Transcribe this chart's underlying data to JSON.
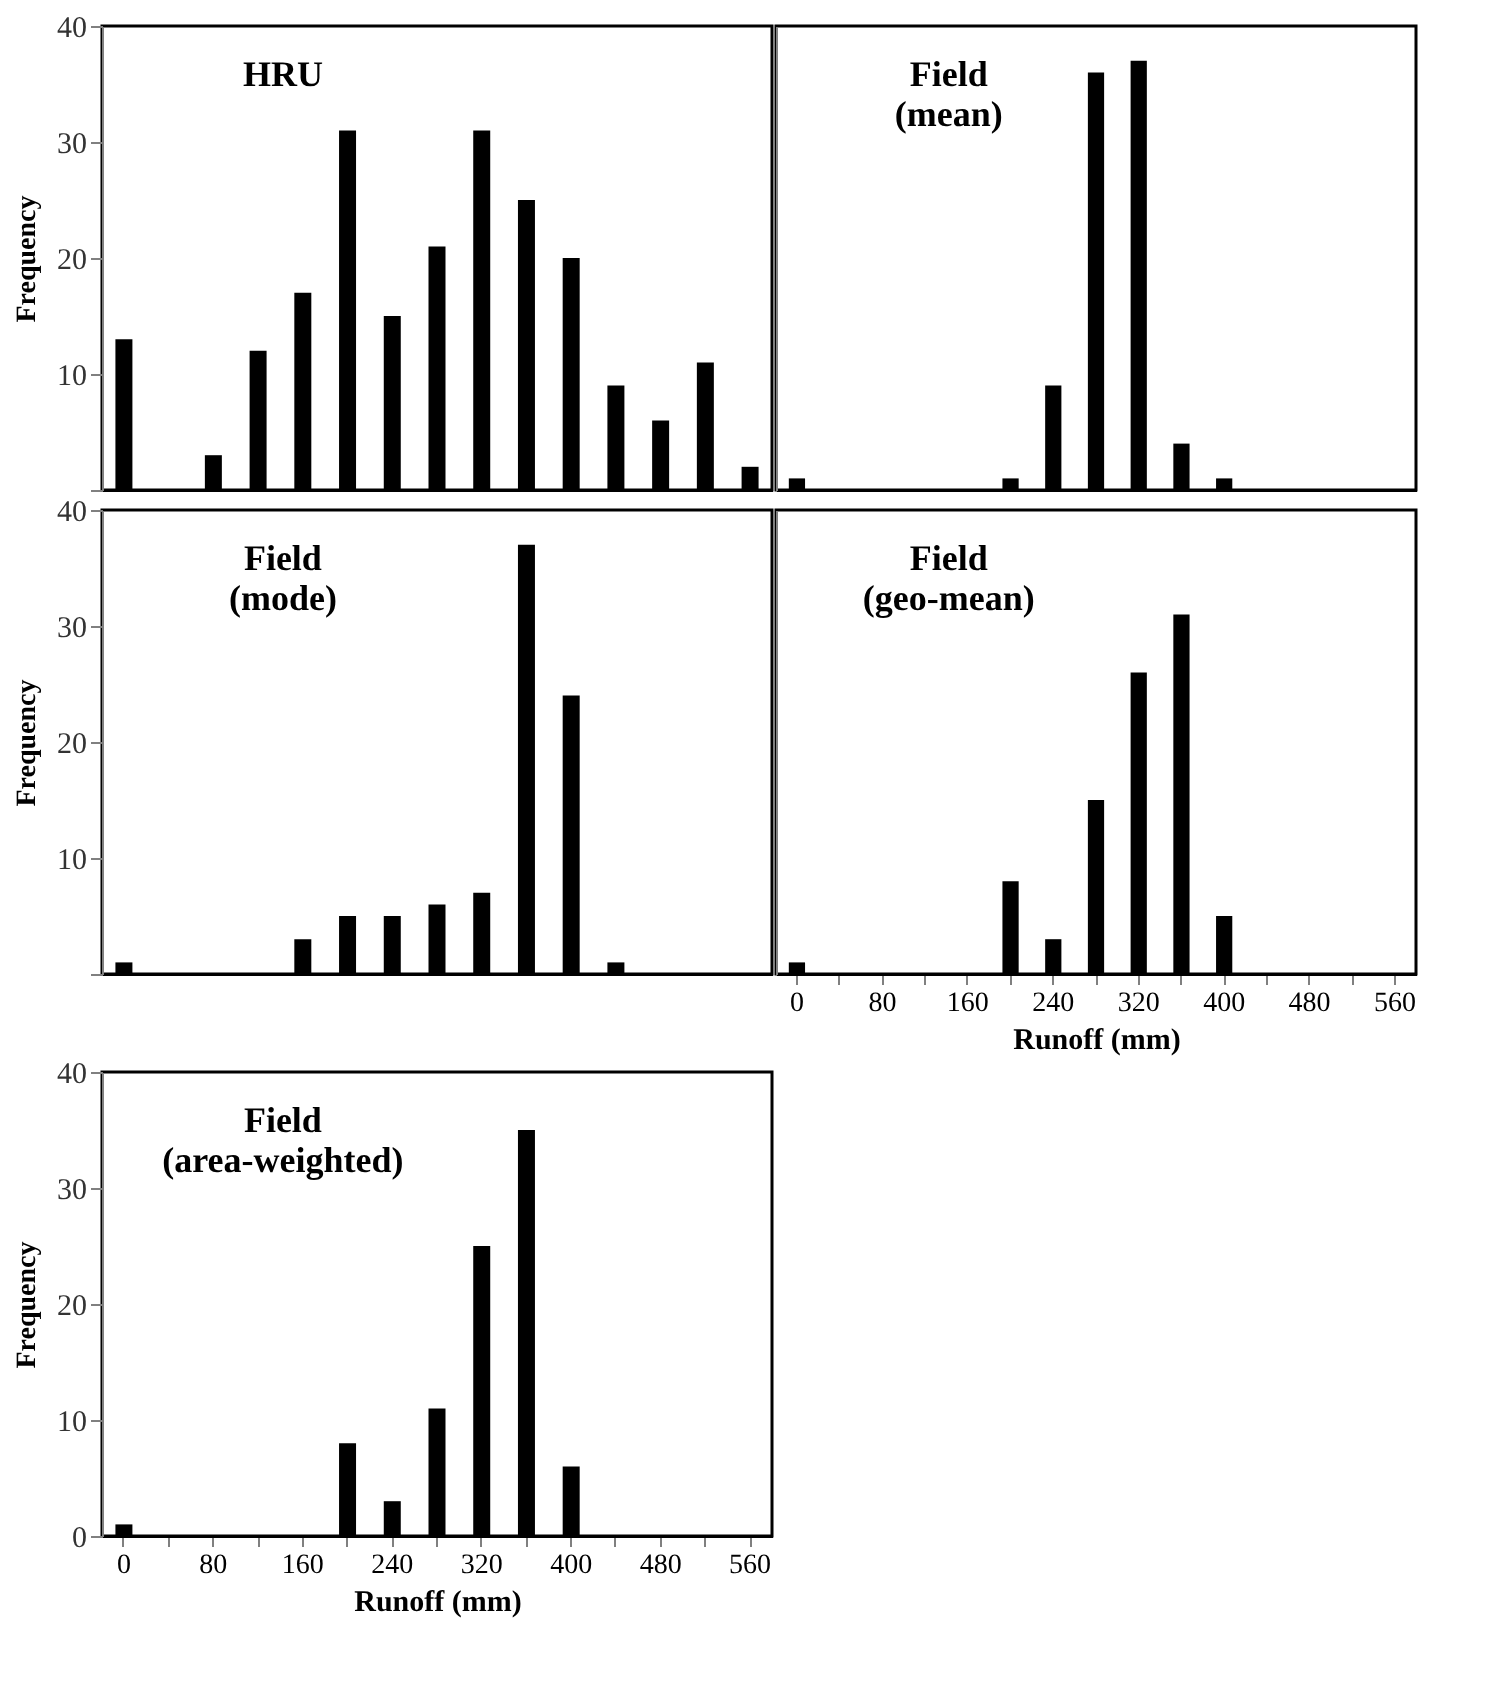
{
  "chart_data": [
    {
      "type": "bar",
      "annotations": [
        "HRU"
      ],
      "ylabel": "Frequency",
      "categories": [
        "0",
        null,
        "80",
        null,
        "160",
        null,
        "240",
        null,
        "320",
        null,
        "400",
        null,
        "480",
        null,
        "560"
      ],
      "values": [
        13,
        0,
        3,
        12,
        17,
        31,
        15,
        21,
        31,
        25,
        20,
        9,
        6,
        11,
        2
      ],
      "color": "#000000",
      "ylim": [
        0,
        40
      ],
      "yticks": [
        {
          "value": 0,
          "label": null
        },
        10,
        20,
        30,
        40
      ],
      "tick_labels": "y",
      "grid": false
    },
    {
      "type": "bar",
      "annotations": [
        "Field\n(mean)"
      ],
      "categories": [
        "0",
        null,
        "80",
        null,
        "160",
        null,
        "240",
        null,
        "320",
        null,
        "400",
        null,
        "480",
        null,
        "560"
      ],
      "values": [
        1,
        0,
        0,
        0,
        0,
        1,
        9,
        36,
        37,
        4,
        1,
        0,
        0,
        0,
        0
      ],
      "color": "#000000",
      "ylim": [
        0,
        40
      ],
      "yticks": [
        0,
        10,
        20,
        30,
        40
      ],
      "tick_labels": false,
      "grid": false
    },
    {
      "type": "bar",
      "annotations": [
        "Field\n(mode)"
      ],
      "ylabel": "Frequency",
      "categories": [
        "0",
        null,
        "80",
        null,
        "160",
        null,
        "240",
        null,
        "320",
        null,
        "400",
        null,
        "480",
        null,
        "560"
      ],
      "values": [
        1,
        0,
        0,
        0,
        3,
        5,
        5,
        6,
        7,
        37,
        24,
        1,
        0,
        0,
        0
      ],
      "color": "#000000",
      "ylim": [
        0,
        40
      ],
      "yticks": [
        {
          "value": 0,
          "label": null
        },
        10,
        20,
        30,
        40
      ],
      "tick_labels": "y",
      "grid": false
    },
    {
      "type": "bar",
      "annotations": [
        "Field\n(geo-mean)"
      ],
      "xlabel": "Runoff (mm)",
      "categories": [
        "0",
        null,
        "80",
        null,
        "160",
        null,
        "240",
        null,
        "320",
        null,
        "400",
        null,
        "480",
        null,
        "560"
      ],
      "values": [
        1,
        0,
        0,
        0,
        0,
        8,
        3,
        15,
        26,
        31,
        5,
        0,
        0,
        0,
        0
      ],
      "color": "#000000",
      "ylim": [
        0,
        40
      ],
      "yticks": [
        0,
        10,
        20,
        30,
        40
      ],
      "tick_labels": "x",
      "grid": false
    },
    {
      "type": "bar",
      "annotations": [
        "Field\n(area-weighted)"
      ],
      "xlabel": "Runoff (mm)",
      "ylabel": "Frequency",
      "categories": [
        "0",
        null,
        "80",
        null,
        "160",
        null,
        "240",
        null,
        "320",
        null,
        "400",
        null,
        "480",
        null,
        "560"
      ],
      "values": [
        1,
        0,
        0,
        0,
        0,
        8,
        3,
        11,
        25,
        35,
        6,
        0,
        0,
        0,
        0
      ],
      "color": "#000000",
      "ylim": [
        0,
        40
      ],
      "yticks": [
        0,
        10,
        20,
        30,
        40
      ],
      "grid": false
    }
  ]
}
